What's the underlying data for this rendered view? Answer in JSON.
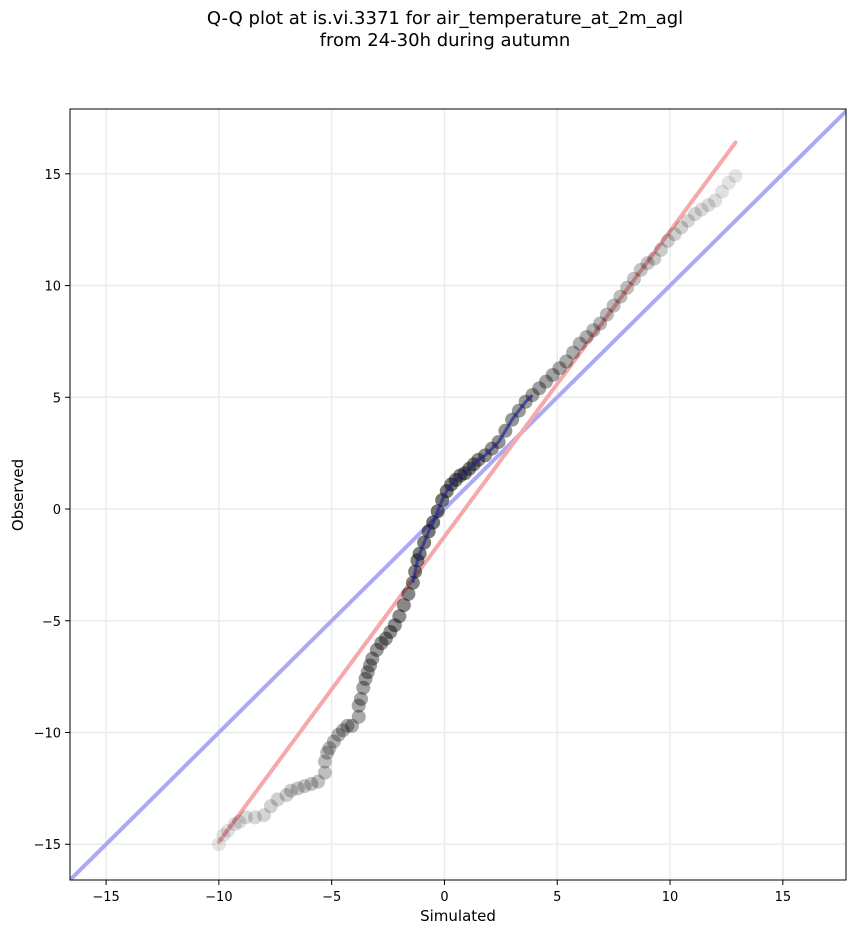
{
  "title_lines": [
    "Q-Q plot at is.vi.3371 for air_temperature_at_2m_agl",
    "from 24-30h during autumn"
  ],
  "chart_data": {
    "type": "scatter",
    "xlabel": "Simulated",
    "ylabel": "Observed",
    "xlim": [
      -16.6,
      17.8
    ],
    "ylim": [
      -16.6,
      17.9
    ],
    "xticks": [
      -15,
      -10,
      -5,
      0,
      5,
      10,
      15
    ],
    "yticks": [
      -15,
      -10,
      -5,
      0,
      5,
      10,
      15
    ],
    "xtick_labels": [
      "−15",
      "−10",
      "−5",
      "0",
      "5",
      "10",
      "15"
    ],
    "ytick_labels": [
      "−15",
      "−10",
      "−5",
      "0",
      "5",
      "10",
      "15"
    ],
    "grid": true,
    "legend": "none",
    "colors": {
      "points": "#000000",
      "identity_line": "#aaaaf4",
      "fit_line": "#f5a9ab",
      "center_segment_blue": "#1f2a8f",
      "center_segment_red": "#8a1a1a",
      "grid": "#ebebeb"
    },
    "reference_lines": [
      {
        "label": "identity",
        "x": [
          -16.6,
          17.8
        ],
        "y": [
          -16.6,
          17.8
        ]
      },
      {
        "label": "fit",
        "x": [
          -10.0,
          12.9
        ],
        "y": [
          -14.9,
          16.4
        ]
      }
    ],
    "points": {
      "x": [
        -10.0,
        -9.8,
        -9.6,
        -9.3,
        -9.1,
        -8.8,
        -8.4,
        -8.0,
        -7.7,
        -7.4,
        -7.0,
        -6.8,
        -6.5,
        -6.2,
        -5.9,
        -5.6,
        -5.3,
        -5.3,
        -5.2,
        -5.1,
        -4.9,
        -4.7,
        -4.5,
        -4.3,
        -4.1,
        -3.8,
        -3.8,
        -3.7,
        -3.6,
        -3.5,
        -3.4,
        -3.3,
        -3.2,
        -3.0,
        -2.8,
        -2.6,
        -2.4,
        -2.2,
        -2.0,
        -1.8,
        -1.6,
        -1.4,
        -1.3,
        -1.2,
        -1.1,
        -0.9,
        -0.7,
        -0.5,
        -0.3,
        -0.1,
        0.1,
        0.3,
        0.5,
        0.7,
        0.9,
        1.1,
        1.3,
        1.5,
        1.8,
        2.1,
        2.4,
        2.7,
        3.0,
        3.3,
        3.6,
        3.9,
        4.2,
        4.5,
        4.8,
        5.1,
        5.4,
        5.7,
        6.0,
        6.3,
        6.6,
        6.9,
        7.2,
        7.5,
        7.8,
        8.1,
        8.4,
        8.7,
        9.0,
        9.3,
        9.6,
        9.9,
        10.2,
        10.5,
        10.8,
        11.1,
        11.4,
        11.7,
        12.0,
        12.3,
        12.6,
        12.9
      ],
      "y": [
        -15.0,
        -14.6,
        -14.4,
        -14.1,
        -14.0,
        -13.8,
        -13.8,
        -13.7,
        -13.3,
        -13.0,
        -12.8,
        -12.6,
        -12.5,
        -12.4,
        -12.3,
        -12.2,
        -11.8,
        -11.3,
        -10.9,
        -10.7,
        -10.4,
        -10.1,
        -9.9,
        -9.7,
        -9.7,
        -9.3,
        -8.8,
        -8.5,
        -8.0,
        -7.6,
        -7.3,
        -7.0,
        -6.7,
        -6.3,
        -6.0,
        -5.8,
        -5.5,
        -5.2,
        -4.8,
        -4.3,
        -3.8,
        -3.3,
        -2.8,
        -2.3,
        -2.0,
        -1.5,
        -1.0,
        -0.6,
        -0.1,
        0.4,
        0.8,
        1.1,
        1.3,
        1.5,
        1.6,
        1.8,
        2.0,
        2.2,
        2.4,
        2.7,
        3.0,
        3.5,
        4.0,
        4.4,
        4.8,
        5.1,
        5.4,
        5.7,
        6.0,
        6.3,
        6.6,
        7.0,
        7.4,
        7.7,
        8.0,
        8.3,
        8.7,
        9.1,
        9.5,
        9.9,
        10.3,
        10.7,
        11.0,
        11.2,
        11.6,
        12.0,
        12.3,
        12.6,
        12.9,
        13.2,
        13.4,
        13.6,
        13.8,
        14.2,
        14.6,
        14.9
      ]
    }
  }
}
